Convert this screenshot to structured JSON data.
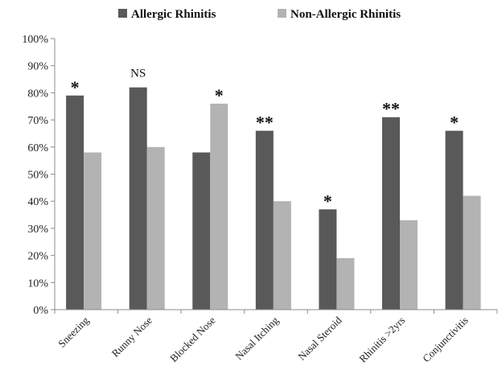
{
  "chart_data": {
    "type": "bar",
    "categories": [
      "Sneezing",
      "Runny Nose",
      "Blocked Nose",
      "Nasal Itching",
      "Nasal Steroid",
      "Rhinitis >2yrs",
      "Conjunctivitis"
    ],
    "series": [
      {
        "name": "Allergic Rhinitis",
        "values": [
          79,
          82,
          58,
          66,
          37,
          71,
          66
        ],
        "color": "#595959"
      },
      {
        "name": "Non-Allergic Rhinitis",
        "values": [
          58,
          60,
          76,
          40,
          19,
          33,
          42
        ],
        "color": "#b3b3b3"
      }
    ],
    "annotations": [
      {
        "category": "Sneezing",
        "text": "*",
        "series": "Allergic Rhinitis"
      },
      {
        "category": "Runny Nose",
        "text": "NS",
        "series": "Allergic Rhinitis"
      },
      {
        "category": "Blocked Nose",
        "text": "*",
        "series": "Non-Allergic Rhinitis"
      },
      {
        "category": "Nasal Itching",
        "text": "**",
        "series": "Allergic Rhinitis"
      },
      {
        "category": "Nasal Steroid",
        "text": "*",
        "series": "Allergic Rhinitis"
      },
      {
        "category": "Rhinitis >2yrs",
        "text": "**",
        "series": "Allergic Rhinitis"
      },
      {
        "category": "Conjunctivitis",
        "text": "*",
        "series": "Allergic Rhinitis"
      }
    ],
    "yticks": [
      "0%",
      "10%",
      "20%",
      "30%",
      "40%",
      "50%",
      "60%",
      "70%",
      "80%",
      "90%",
      "100%"
    ],
    "ylim": [
      0,
      100
    ],
    "grid": false,
    "legend_position": "top-center",
    "title": "",
    "xlabel": "",
    "ylabel": ""
  }
}
